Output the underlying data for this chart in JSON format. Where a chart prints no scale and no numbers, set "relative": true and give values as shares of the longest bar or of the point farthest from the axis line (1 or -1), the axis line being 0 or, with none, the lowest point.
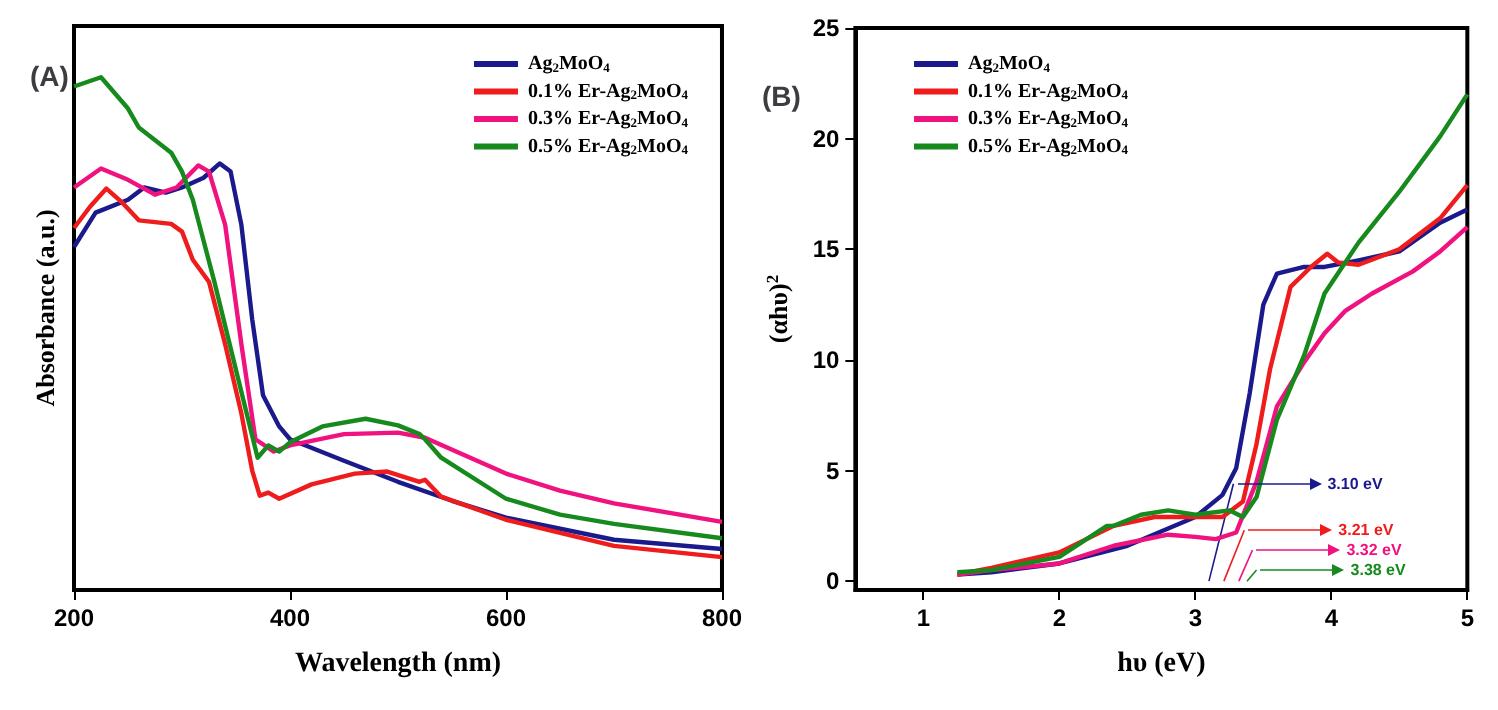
{
  "chart_data": [
    {
      "type": "line",
      "title": "(A)",
      "xlabel": "Wavelength (nm)",
      "ylabel": "Absorbance (a.u.)",
      "relative": true,
      "xlim": [
        200,
        800
      ],
      "xticks": [
        200,
        400,
        600,
        800
      ],
      "legend": "top right",
      "grid": false,
      "marker": "none",
      "series": [
        {
          "name": "Ag$_{2}$MoO$_{4}$",
          "color": "#1a1a8c",
          "x": [
            200,
            220,
            250,
            265,
            285,
            300,
            320,
            335,
            345,
            355,
            365,
            375,
            390,
            400,
            450,
            500,
            550,
            600,
            700,
            800
          ],
          "values": [
            0.669,
            0.736,
            0.761,
            0.785,
            0.775,
            0.785,
            0.804,
            0.832,
            0.816,
            0.712,
            0.528,
            0.38,
            0.319,
            0.294,
            0.252,
            0.211,
            0.174,
            0.141,
            0.098,
            0.08
          ]
        },
        {
          "name": "0.1% Er-Ag$_{2}$MoO$_{4}$",
          "color": "#ee1c1c",
          "x": [
            200,
            215,
            230,
            245,
            260,
            290,
            300,
            310,
            325,
            340,
            355,
            365,
            372,
            380,
            390,
            420,
            460,
            490,
            520,
            525,
            540,
            600,
            700,
            800
          ],
          "values": [
            0.706,
            0.748,
            0.783,
            0.755,
            0.721,
            0.714,
            0.699,
            0.644,
            0.601,
            0.479,
            0.344,
            0.233,
            0.184,
            0.19,
            0.178,
            0.206,
            0.227,
            0.231,
            0.211,
            0.215,
            0.182,
            0.137,
            0.086,
            0.064
          ]
        },
        {
          "name": "0.3% Er-Ag$_{2}$MoO$_{4}$",
          "color": "#f0127f",
          "x": [
            200,
            225,
            250,
            275,
            295,
            315,
            325,
            340,
            355,
            368,
            385,
            400,
            450,
            500,
            525,
            600,
            650,
            700,
            800
          ],
          "values": [
            0.785,
            0.822,
            0.8,
            0.771,
            0.785,
            0.828,
            0.816,
            0.712,
            0.479,
            0.294,
            0.27,
            0.282,
            0.304,
            0.307,
            0.297,
            0.227,
            0.194,
            0.169,
            0.133
          ]
        },
        {
          "name": "0.5% Er-Ag$_{2}$MoO$_{4}$",
          "color": "#178a1e",
          "x": [
            200,
            225,
            250,
            260,
            290,
            300,
            310,
            330,
            350,
            370,
            380,
            390,
            400,
            430,
            470,
            500,
            520,
            525,
            540,
            600,
            650,
            700,
            800
          ],
          "values": [
            0.982,
            1.0,
            0.939,
            0.902,
            0.853,
            0.816,
            0.761,
            0.601,
            0.429,
            0.258,
            0.282,
            0.27,
            0.288,
            0.319,
            0.334,
            0.321,
            0.304,
            0.294,
            0.258,
            0.178,
            0.147,
            0.129,
            0.101
          ]
        }
      ]
    },
    {
      "type": "line",
      "title": "(B)",
      "xlabel": "hυ (eV)",
      "ylabel": "(αhυ)$^{2}$",
      "xlim": [
        0.5,
        5
      ],
      "xticks": [
        1,
        2,
        3,
        4,
        5
      ],
      "ylim": [
        -0.4,
        25
      ],
      "yticks": [
        0,
        5,
        10,
        15,
        20,
        25
      ],
      "legend": "top left",
      "grid": false,
      "marker": "none",
      "series": [
        {
          "name": "Ag$_{2}$MoO$_{4}$",
          "color": "#1a1a8c",
          "x": [
            1.25,
            1.5,
            2.0,
            2.5,
            3.0,
            3.2,
            3.3,
            3.4,
            3.5,
            3.6,
            3.8,
            3.95,
            4.2,
            4.5,
            4.8,
            5.0
          ],
          "values": [
            0.3,
            0.4,
            0.8,
            1.6,
            2.9,
            3.9,
            5.1,
            8.5,
            12.5,
            13.9,
            14.2,
            14.2,
            14.5,
            14.9,
            16.2,
            16.8
          ]
        },
        {
          "name": "0.1% Er-Ag$_{2}$MoO$_{4}$",
          "color": "#ee1c1c",
          "x": [
            1.25,
            1.5,
            2.0,
            2.4,
            2.7,
            3.0,
            3.2,
            3.35,
            3.45,
            3.55,
            3.7,
            3.85,
            3.97,
            4.05,
            4.2,
            4.5,
            4.8,
            5.0
          ],
          "values": [
            0.3,
            0.6,
            1.3,
            2.5,
            2.9,
            2.9,
            2.9,
            3.6,
            6.2,
            9.6,
            13.3,
            14.2,
            14.8,
            14.4,
            14.3,
            15.0,
            16.4,
            17.9
          ]
        },
        {
          "name": "0.3% Er-Ag$_{2}$MoO$_{4}$",
          "color": "#f0127f",
          "x": [
            1.25,
            1.5,
            2.0,
            2.4,
            2.8,
            3.0,
            3.15,
            3.3,
            3.45,
            3.6,
            3.8,
            3.95,
            4.1,
            4.3,
            4.6,
            4.8,
            5.0
          ],
          "values": [
            0.3,
            0.5,
            0.8,
            1.6,
            2.1,
            2.0,
            1.9,
            2.2,
            4.5,
            7.9,
            9.9,
            11.2,
            12.2,
            13.0,
            14.0,
            14.9,
            16.0
          ]
        },
        {
          "name": "0.5% Er-Ag$_{2}$MoO$_{4}$",
          "color": "#178a1e",
          "x": [
            1.25,
            1.5,
            2.0,
            2.35,
            2.4,
            2.6,
            2.8,
            3.0,
            3.25,
            3.35,
            3.45,
            3.6,
            3.8,
            3.95,
            4.2,
            4.5,
            4.8,
            5.0
          ],
          "values": [
            0.4,
            0.5,
            1.1,
            2.5,
            2.5,
            3.0,
            3.2,
            3.0,
            3.2,
            2.9,
            3.8,
            7.3,
            10.2,
            13.0,
            15.3,
            17.6,
            20.1,
            22.0
          ]
        },
        {
          "color": "#1a1a8c",
          "x": [
            3.1,
            3.28
          ],
          "values": [
            0,
            4.4
          ]
        },
        {
          "color": "#ee1c1c",
          "x": [
            3.21,
            3.36
          ],
          "values": [
            0,
            2.3
          ]
        },
        {
          "color": "#f0127f",
          "x": [
            3.32,
            3.42
          ],
          "values": [
            0,
            1.4
          ]
        },
        {
          "color": "#178a1e",
          "x": [
            3.38,
            3.45
          ],
          "values": [
            0,
            0.5
          ]
        }
      ],
      "annotations": [
        "3.10 eV",
        "3.21 eV",
        "3.32 eV",
        "3.38 eV"
      ]
    }
  ]
}
